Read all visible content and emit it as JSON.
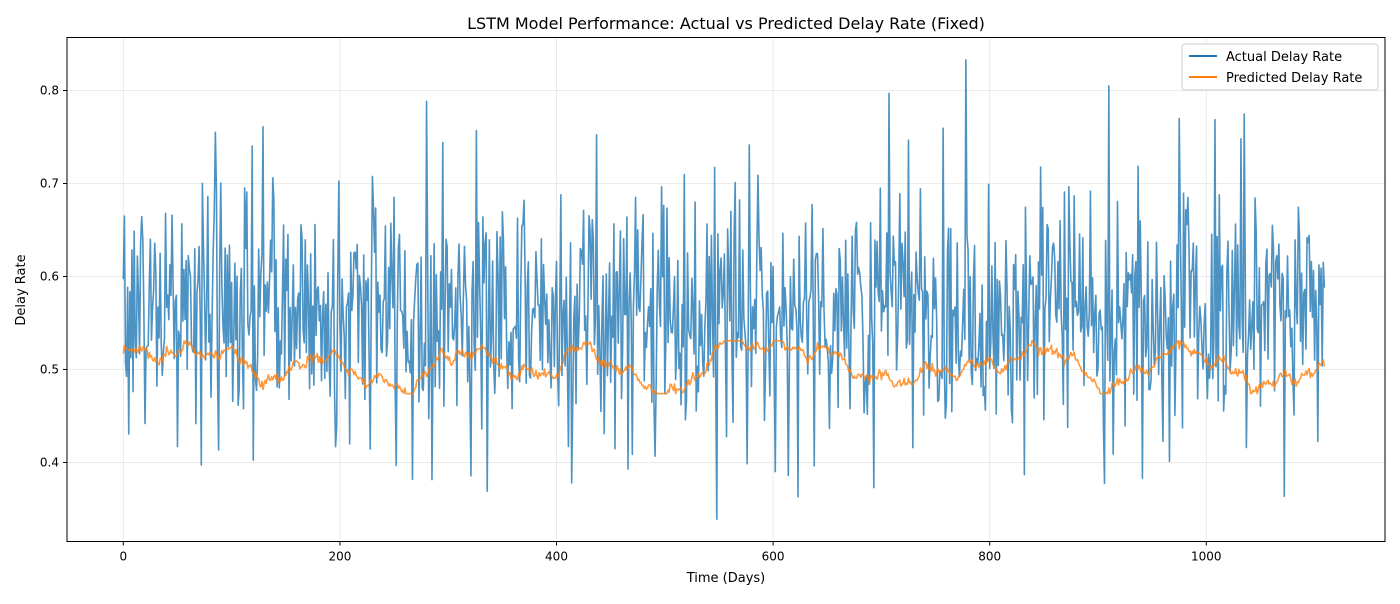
{
  "chart_data": {
    "type": "line",
    "title": "LSTM Model Performance: Actual vs Predicted Delay Rate (Fixed)",
    "xlabel": "Time (Days)",
    "ylabel": "Delay Rate",
    "xlim": [
      -52,
      1165
    ],
    "ylim": [
      0.315,
      0.857
    ],
    "x_ticks": [
      0,
      200,
      400,
      600,
      800,
      1000
    ],
    "y_ticks": [
      0.4,
      0.5,
      0.6,
      0.7,
      0.8
    ],
    "y_tick_labels": [
      "0.4",
      "0.5",
      "0.6",
      "0.7",
      "0.8"
    ],
    "grid": true,
    "legend_position": "top-right",
    "series": [
      {
        "name": "Actual Delay Rate",
        "color": "#1f77b4",
        "x_start": 0,
        "x_step": 1,
        "n_points": 1110,
        "stats": {
          "mean": 0.565,
          "std": 0.073,
          "min": 0.339,
          "max": 0.833
        },
        "annotated_points": [
          {
            "x": 0,
            "y": 0.597
          },
          {
            "x": 1,
            "y": 0.665
          },
          {
            "x": 85,
            "y": 0.755
          },
          {
            "x": 129,
            "y": 0.761
          },
          {
            "x": 196,
            "y": 0.417
          },
          {
            "x": 267,
            "y": 0.382
          },
          {
            "x": 326,
            "y": 0.757
          },
          {
            "x": 414,
            "y": 0.378
          },
          {
            "x": 548,
            "y": 0.339
          },
          {
            "x": 623,
            "y": 0.363
          },
          {
            "x": 693,
            "y": 0.373
          },
          {
            "x": 707,
            "y": 0.797
          },
          {
            "x": 778,
            "y": 0.833
          },
          {
            "x": 910,
            "y": 0.805
          },
          {
            "x": 914,
            "y": 0.409
          },
          {
            "x": 941,
            "y": 0.383
          },
          {
            "x": 975,
            "y": 0.77
          },
          {
            "x": 1109,
            "y": 0.588
          }
        ]
      },
      {
        "name": "Predicted Delay Rate",
        "color": "#ff7f0e",
        "x_start": 0,
        "x_step": 1,
        "n_points": 1110,
        "stats": {
          "mean": 0.502,
          "min": 0.474,
          "max": 0.531
        },
        "annotated_points": [
          {
            "x": 0,
            "y": 0.517
          },
          {
            "x": 45,
            "y": 0.518
          },
          {
            "x": 85,
            "y": 0.52
          },
          {
            "x": 145,
            "y": 0.487
          },
          {
            "x": 170,
            "y": 0.514
          },
          {
            "x": 260,
            "y": 0.48
          },
          {
            "x": 310,
            "y": 0.52
          },
          {
            "x": 390,
            "y": 0.492
          },
          {
            "x": 415,
            "y": 0.522
          },
          {
            "x": 510,
            "y": 0.474
          },
          {
            "x": 560,
            "y": 0.531
          },
          {
            "x": 640,
            "y": 0.52
          },
          {
            "x": 700,
            "y": 0.489
          },
          {
            "x": 790,
            "y": 0.502
          },
          {
            "x": 855,
            "y": 0.522
          },
          {
            "x": 910,
            "y": 0.48
          },
          {
            "x": 975,
            "y": 0.522
          },
          {
            "x": 1060,
            "y": 0.484
          },
          {
            "x": 1109,
            "y": 0.503
          }
        ]
      }
    ]
  }
}
